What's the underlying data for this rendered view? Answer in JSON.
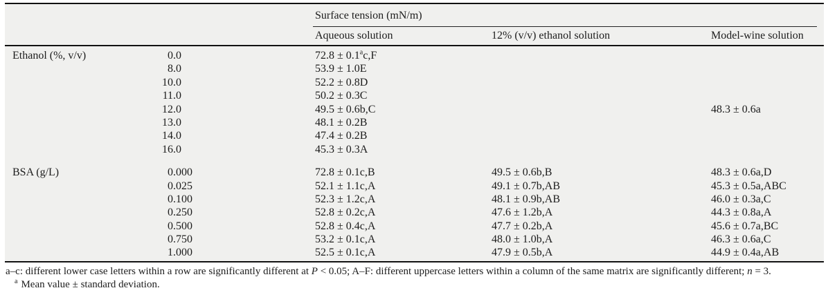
{
  "table": {
    "span_title": "Surface tension (mN/m)",
    "col_labels": [
      "Aqueous solution",
      "12% (v/v) ethanol solution",
      "Model-wine solution"
    ],
    "groups": [
      {
        "label": "Ethanol (%, v/v)",
        "rows": [
          {
            "dose": "0.0",
            "aqueous": {
              "pre": "72.8 ± 0.1",
              "sup": "a",
              "post": "c,F"
            },
            "ethanol12": "",
            "modelwine": ""
          },
          {
            "dose": "8.0",
            "aqueous": "53.9 ± 1.0E",
            "ethanol12": "",
            "modelwine": ""
          },
          {
            "dose": "10.0",
            "aqueous": "52.2 ± 0.8D",
            "ethanol12": "",
            "modelwine": ""
          },
          {
            "dose": "11.0",
            "aqueous": "50.2 ± 0.3C",
            "ethanol12": "",
            "modelwine": ""
          },
          {
            "dose": "12.0",
            "aqueous": "49.5 ± 0.6b,C",
            "ethanol12": "",
            "modelwine": "48.3 ± 0.6a"
          },
          {
            "dose": "13.0",
            "aqueous": "48.1 ± 0.2B",
            "ethanol12": "",
            "modelwine": ""
          },
          {
            "dose": "14.0",
            "aqueous": "47.4 ± 0.2B",
            "ethanol12": "",
            "modelwine": ""
          },
          {
            "dose": "16.0",
            "aqueous": "45.3 ± 0.3A",
            "ethanol12": "",
            "modelwine": ""
          }
        ]
      },
      {
        "label": "BSA (g/L)",
        "rows": [
          {
            "dose": "0.000",
            "aqueous": "72.8 ± 0.1c,B",
            "ethanol12": "49.5 ± 0.6b,B",
            "modelwine": "48.3 ± 0.6a,D"
          },
          {
            "dose": "0.025",
            "aqueous": "52.1 ± 1.1c,A",
            "ethanol12": "49.1 ± 0.7b,AB",
            "modelwine": "45.3 ± 0.5a,ABC"
          },
          {
            "dose": "0.100",
            "aqueous": "52.3 ± 1.2c,A",
            "ethanol12": "48.1 ± 0.9b,AB",
            "modelwine": "46.0 ± 0.3a,C"
          },
          {
            "dose": "0.250",
            "aqueous": "52.8 ± 0.2c,A",
            "ethanol12": "47.6 ± 1.2b,A",
            "modelwine": "44.3 ± 0.8a,A"
          },
          {
            "dose": "0.500",
            "aqueous": "52.8 ± 0.4c,A",
            "ethanol12": "47.7 ± 0.2b,A",
            "modelwine": "45.6 ± 0.7a,BC"
          },
          {
            "dose": "0.750",
            "aqueous": "53.2 ± 0.1c,A",
            "ethanol12": "48.0 ± 1.0b,A",
            "modelwine": "46.3 ± 0.6a,C"
          },
          {
            "dose": "1.000",
            "aqueous": "52.5 ± 0.1c,A",
            "ethanol12": "47.9 ± 0.5b,A",
            "modelwine": "44.9 ± 0.4a,AB"
          }
        ]
      }
    ]
  },
  "footnotes": {
    "note1_parts": [
      {
        "t": "a–c: different lower case letters within a row are significantly different at "
      },
      {
        "t": "P",
        "i": true
      },
      {
        "t": " < 0.05; A–F: different uppercase letters within a column of the same matrix are significantly different; "
      },
      {
        "t": "n",
        "i": true
      },
      {
        "t": " = 3."
      }
    ],
    "note2": {
      "sup": "a",
      "text": "Mean value ± standard deviation."
    }
  },
  "colors": {
    "table_background": "#f0f0ee",
    "rule": "#111111",
    "text": "#1c1c1c"
  }
}
